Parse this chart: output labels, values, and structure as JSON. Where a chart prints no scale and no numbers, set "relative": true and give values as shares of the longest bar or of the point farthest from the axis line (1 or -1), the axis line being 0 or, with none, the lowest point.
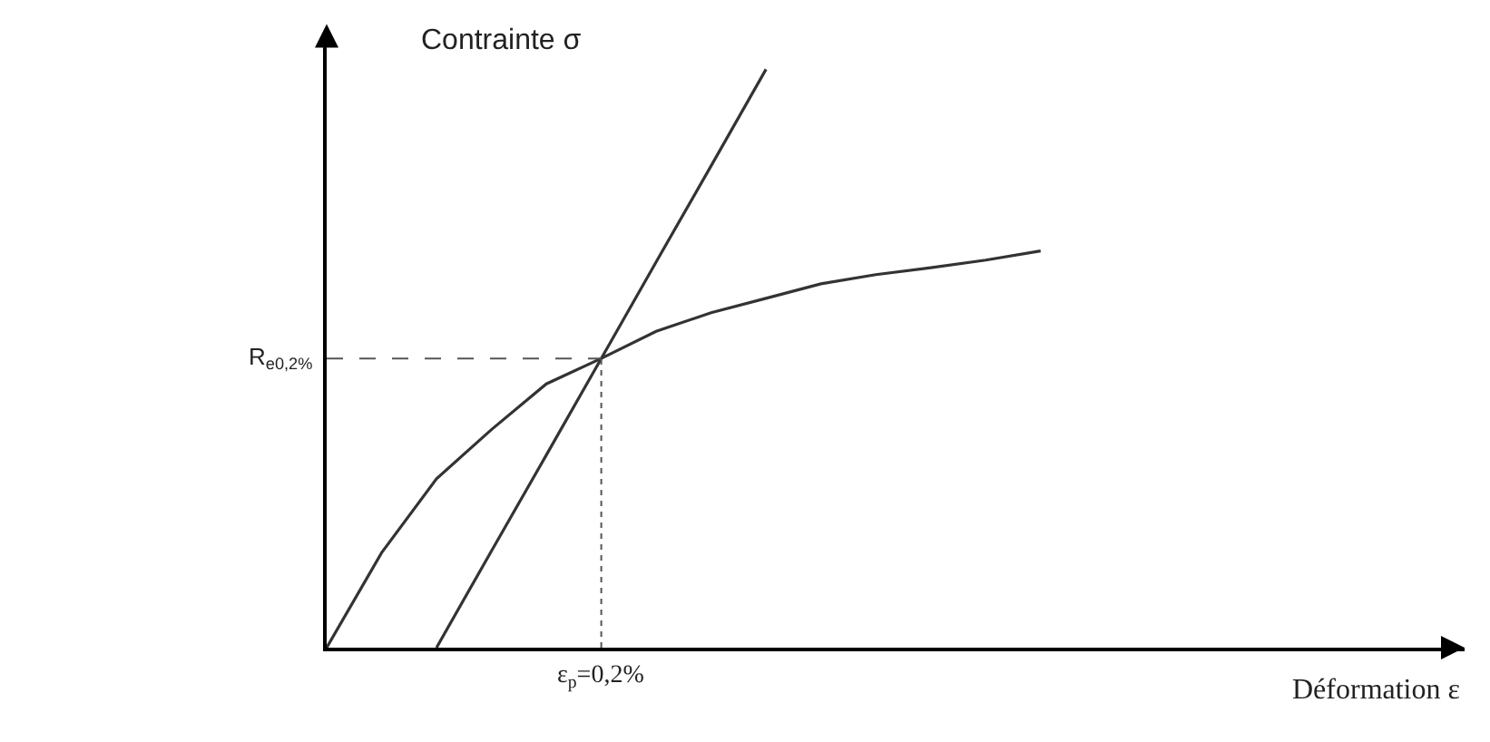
{
  "chart_data": {
    "type": "line",
    "relative": true,
    "xlabel": "Déformation ε",
    "ylabel": "Contrainte σ",
    "marker": "none",
    "line_style": "solid",
    "categories": [
      null,
      null,
      null,
      null,
      null,
      null,
      null,
      null,
      null,
      null,
      null,
      null,
      null,
      null,
      null,
      null,
      null,
      null,
      null,
      null,
      null
    ],
    "series": [
      {
        "color": "#333333",
        "values": [
          0,
          0.164,
          0.292,
          0.377,
          0.456,
          0.5,
          0.547,
          0.579,
          0.604,
          0.629,
          0.645,
          0.657,
          0.67,
          0.686,
          null,
          null,
          null,
          null,
          null,
          null,
          null
        ]
      },
      {
        "color": "#333333",
        "values": [
          null,
          null,
          0,
          0.167,
          0.333,
          0.5,
          0.667,
          0.833,
          1,
          null,
          null,
          null,
          null,
          null,
          null,
          null,
          null,
          null,
          null,
          null,
          null
        ]
      }
    ],
    "annotations": [
      "ε$_{p}$=0,2%"
    ],
    "ref_lines": [
      {
        "axis": "y",
        "value": 0.5,
        "label": "R$_{e0,2%}$",
        "line_style": "dashed",
        "color": "#555555"
      }
    ]
  }
}
